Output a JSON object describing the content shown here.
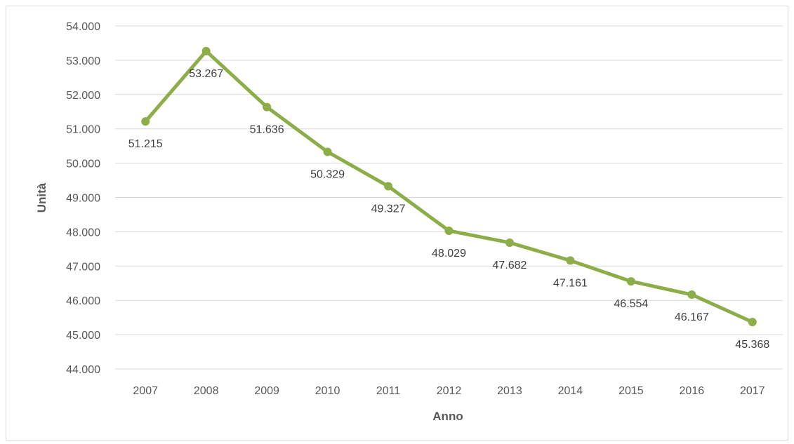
{
  "chart_data": {
    "type": "line",
    "title": "",
    "xlabel": "Anno",
    "ylabel": "Unità",
    "categories": [
      "2007",
      "2008",
      "2009",
      "2010",
      "2011",
      "2012",
      "2013",
      "2014",
      "2015",
      "2016",
      "2017"
    ],
    "series": [
      {
        "values": [
          51215,
          53267,
          51636,
          50329,
          49327,
          48029,
          47682,
          47161,
          46554,
          46167,
          45368
        ],
        "labels": [
          "51.215",
          "53.267",
          "51.636",
          "50.329",
          "49.327",
          "48.029",
          "47.682",
          "47.161",
          "46.554",
          "46.167",
          "45.368"
        ],
        "color": "#8cad48"
      }
    ],
    "ylim": [
      44000,
      54000
    ],
    "yticks": [
      44000,
      45000,
      46000,
      47000,
      48000,
      49000,
      50000,
      51000,
      52000,
      53000,
      54000
    ],
    "ytick_labels": [
      "44.000",
      "45.000",
      "46.000",
      "47.000",
      "48.000",
      "49.000",
      "50.000",
      "51.000",
      "52.000",
      "53.000",
      "54.000"
    ],
    "grid": true,
    "legend": "none",
    "gridline_color": "#d9d9d9"
  }
}
